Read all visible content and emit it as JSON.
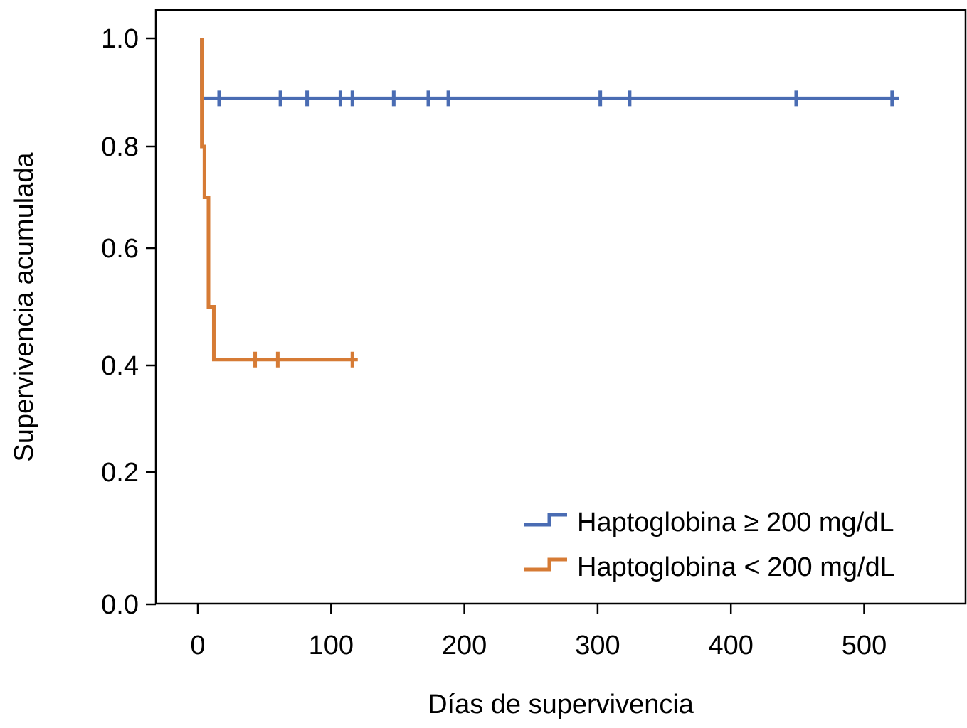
{
  "chart_data": {
    "type": "line",
    "subtype": "kaplan-meier step",
    "title": "",
    "xlabel": "Días de supervivencia",
    "ylabel": "Supervivencia acumulada",
    "xlim": [
      -30,
      575
    ],
    "ylim": [
      0,
      1.0
    ],
    "xticks": [
      0,
      100,
      200,
      300,
      400,
      500
    ],
    "xtick_labels": [
      "0",
      "100",
      "200",
      "300",
      "400",
      "500"
    ],
    "yticks": [
      0,
      0.2,
      0.4,
      0.6,
      0.8,
      1.0
    ],
    "ytick_labels": [
      "0.0",
      "0.2",
      "0.4",
      "0.6",
      "0.8",
      "1.0"
    ],
    "grid": false,
    "legend_position": "bottom-right",
    "series": [
      {
        "name": "Haptoglobina ≥ 200 mg/dL",
        "color": "#4a6cb3",
        "steps": [
          [
            3,
            1.0
          ],
          [
            3,
            0.889
          ],
          [
            526,
            0.889
          ]
        ],
        "censored": [
          [
            16,
            0.889
          ],
          [
            62,
            0.889
          ],
          [
            82,
            0.889
          ],
          [
            107,
            0.889
          ],
          [
            116,
            0.889
          ],
          [
            147,
            0.889
          ],
          [
            173,
            0.889
          ],
          [
            188,
            0.889
          ],
          [
            302,
            0.889
          ],
          [
            324,
            0.889
          ],
          [
            449,
            0.889
          ],
          [
            521,
            0.889
          ]
        ]
      },
      {
        "name": "Haptoglobina < 200 mg/dL",
        "color": "#d67b35",
        "steps": [
          [
            3,
            1.0
          ],
          [
            3,
            0.8
          ],
          [
            5,
            0.8
          ],
          [
            5,
            0.7
          ],
          [
            8,
            0.7
          ],
          [
            8,
            0.5
          ],
          [
            12,
            0.5
          ],
          [
            12,
            0.41
          ],
          [
            120,
            0.41
          ]
        ],
        "censored": [
          [
            43,
            0.41
          ],
          [
            60,
            0.41
          ],
          [
            116,
            0.41
          ]
        ]
      }
    ]
  }
}
